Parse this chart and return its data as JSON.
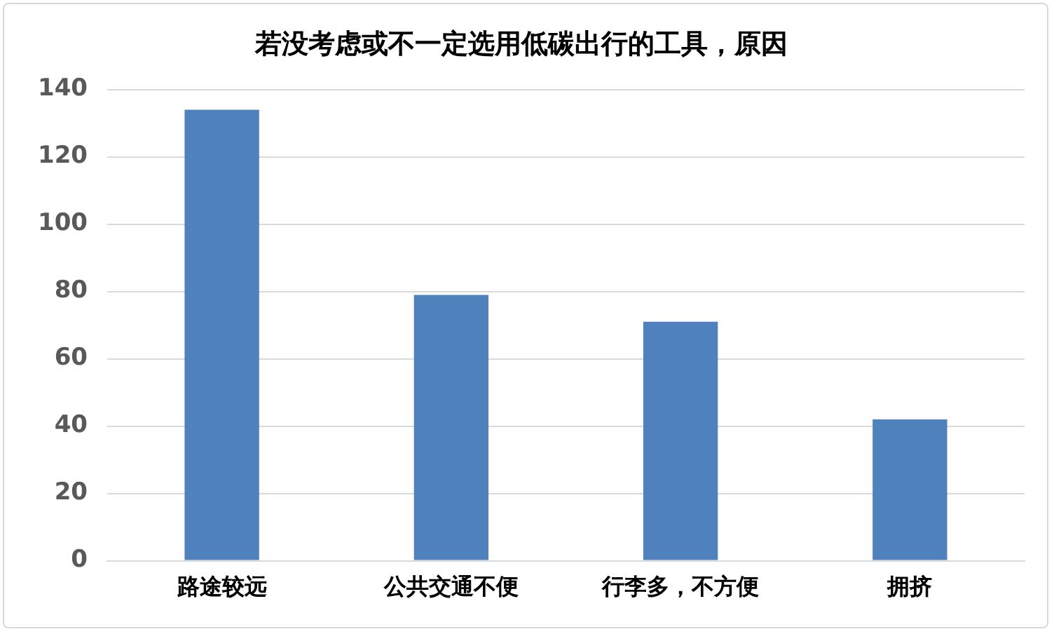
{
  "chart_data": {
    "type": "bar",
    "title": "若没考虑或不一定选用低碳出行的工具，原因",
    "categories": [
      "路途较远",
      "公共交通不便",
      "行李多，不方便",
      "拥挤"
    ],
    "values": [
      134,
      79,
      71,
      42
    ],
    "color": "#4f81bd",
    "ylim": [
      0,
      140
    ],
    "yticks": [
      0,
      20,
      40,
      60,
      80,
      100,
      120,
      140
    ],
    "grid": "y",
    "legend": false
  }
}
